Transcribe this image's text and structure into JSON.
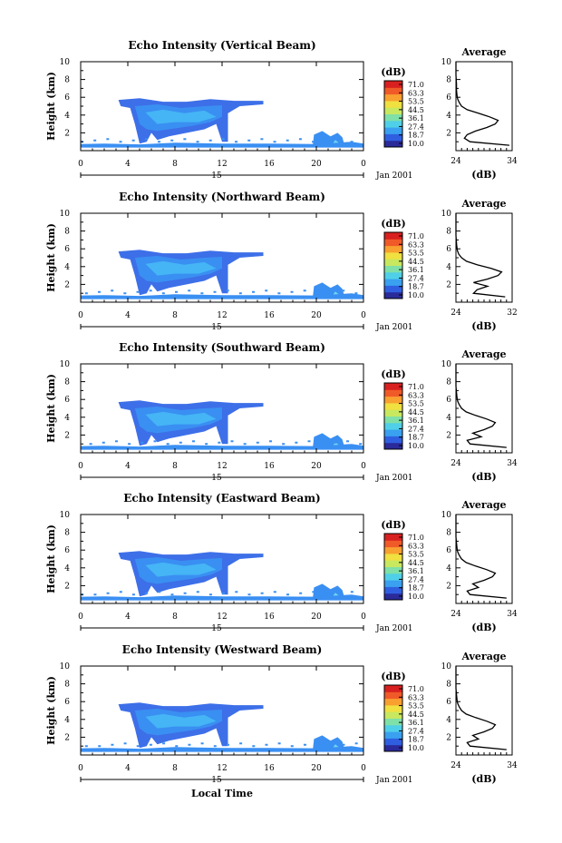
{
  "figure": {
    "xlabel": "Local Time",
    "date_label": "Jan 2001",
    "average_title": "Average",
    "avg_xlabel": "(dB)",
    "colorbar_unit": "(dB)",
    "colorbar_ticks": [
      "71.0",
      "63.3",
      "53.5",
      "44.5",
      "36.1",
      "27.4",
      "18.7",
      "10.0"
    ],
    "colorbar_colors": [
      "#2a2a9a",
      "#2f5fe0",
      "#3aa0f0",
      "#4fd0e8",
      "#7fe0a8",
      "#c8e860",
      "#f0e040",
      "#f8a030",
      "#f05a28",
      "#d82020"
    ],
    "echo_colors": [
      "#3d6fe8",
      "#3a8ff2",
      "#45b5f5",
      "#6fd6f0",
      "#a8ee9a"
    ]
  },
  "chart_data": [
    {
      "type": "heatmap",
      "title": "Echo Intensity (Vertical Beam)",
      "ylabel": "Height (km)",
      "xlim": [
        0,
        24
      ],
      "ylim": [
        0,
        10
      ],
      "x_ticks": [
        "0",
        "4",
        "8",
        "12",
        "16",
        "20",
        "0"
      ],
      "y_ticks": [
        "2",
        "4",
        "6",
        "8",
        "10"
      ],
      "day_marker": "15",
      "colorbar_range": [
        10.0,
        71.0
      ],
      "average_profile": {
        "xlim": [
          24,
          34
        ],
        "x_ticks": [
          "24",
          "34"
        ],
        "ylim": [
          0,
          10
        ],
        "y_ticks": [
          "2",
          "4",
          "6",
          "8",
          "10"
        ],
        "db": [
          33.5,
          26.5,
          25.5,
          26.0,
          27.5,
          29.5,
          31.0,
          31.5,
          30.0,
          28.0,
          26.0,
          25.0,
          24.6,
          24.3,
          24.2,
          24.1,
          24.1,
          24.0,
          24.0,
          24.0
        ],
        "height_km": [
          0.6,
          1.0,
          1.4,
          1.8,
          2.2,
          2.6,
          3.0,
          3.4,
          3.8,
          4.2,
          4.6,
          5.0,
          5.4,
          5.8,
          6.2,
          6.8,
          7.5,
          8.5,
          9.2,
          10.0
        ]
      }
    },
    {
      "type": "heatmap",
      "title": "Echo Intensity (Northward Beam)",
      "ylabel": "Height (km)",
      "xlim": [
        0,
        24
      ],
      "ylim": [
        0,
        10
      ],
      "x_ticks": [
        "0",
        "4",
        "8",
        "12",
        "16",
        "20",
        "0"
      ],
      "y_ticks": [
        "2",
        "4",
        "6",
        "8",
        "10"
      ],
      "day_marker": "15",
      "colorbar_range": [
        10.0,
        71.0
      ],
      "average_profile": {
        "xlim": [
          24,
          32
        ],
        "x_ticks": [
          "24",
          "32"
        ],
        "ylim": [
          0,
          10
        ],
        "y_ticks": [
          "2",
          "4",
          "6",
          "8",
          "10"
        ],
        "db": [
          31.0,
          26.5,
          27.0,
          28.5,
          26.5,
          28.5,
          30.0,
          30.5,
          29.0,
          27.0,
          25.5,
          24.8,
          24.4,
          24.2,
          24.1,
          24.0,
          24.0,
          24.0
        ],
        "height_km": [
          0.6,
          1.0,
          1.4,
          1.8,
          2.2,
          2.6,
          3.0,
          3.4,
          3.8,
          4.2,
          4.6,
          5.0,
          5.4,
          5.8,
          6.4,
          7.5,
          8.5,
          10.0
        ]
      }
    },
    {
      "type": "heatmap",
      "title": "Echo Intensity (Southward Beam)",
      "ylabel": "Height (km)",
      "xlim": [
        0,
        24
      ],
      "ylim": [
        0,
        10
      ],
      "x_ticks": [
        "0",
        "4",
        "8",
        "12",
        "16",
        "20",
        "0"
      ],
      "y_ticks": [
        "2",
        "4",
        "6",
        "8",
        "10"
      ],
      "day_marker": "15",
      "colorbar_range": [
        10.0,
        71.0
      ],
      "average_profile": {
        "xlim": [
          24,
          34
        ],
        "x_ticks": [
          "24",
          "34"
        ],
        "ylim": [
          0,
          10
        ],
        "y_ticks": [
          "2",
          "4",
          "6",
          "8",
          "10"
        ],
        "db": [
          33.0,
          26.5,
          26.0,
          28.5,
          27.0,
          29.0,
          30.5,
          31.0,
          29.5,
          27.5,
          25.8,
          25.0,
          24.6,
          24.3,
          24.2,
          24.1,
          24.0,
          24.0,
          24.0
        ],
        "height_km": [
          0.6,
          1.0,
          1.4,
          1.8,
          2.2,
          2.6,
          3.0,
          3.4,
          3.8,
          4.2,
          4.6,
          5.0,
          5.4,
          5.8,
          6.2,
          6.8,
          7.5,
          8.5,
          10.0
        ]
      }
    },
    {
      "type": "heatmap",
      "title": "Echo Intensity (Eastward Beam)",
      "ylabel": "Height (km)",
      "xlim": [
        0,
        24
      ],
      "ylim": [
        0,
        10
      ],
      "x_ticks": [
        "0",
        "4",
        "8",
        "12",
        "16",
        "20",
        "0"
      ],
      "y_ticks": [
        "2",
        "4",
        "6",
        "8",
        "10"
      ],
      "day_marker": "15",
      "colorbar_range": [
        10.0,
        71.0
      ],
      "average_profile": {
        "xlim": [
          24,
          34
        ],
        "x_ticks": [
          "24",
          "34"
        ],
        "ylim": [
          0,
          10
        ],
        "y_ticks": [
          "2",
          "4",
          "6",
          "8",
          "10"
        ],
        "db": [
          33.0,
          26.5,
          26.0,
          28.0,
          27.0,
          29.0,
          30.5,
          31.0,
          29.5,
          27.5,
          25.8,
          25.0,
          24.6,
          24.3,
          24.2,
          24.1,
          24.0,
          24.0,
          24.0
        ],
        "height_km": [
          0.6,
          1.0,
          1.4,
          1.8,
          2.2,
          2.6,
          3.0,
          3.4,
          3.8,
          4.2,
          4.6,
          5.0,
          5.4,
          5.8,
          6.2,
          6.8,
          7.5,
          8.5,
          10.0
        ]
      }
    },
    {
      "type": "heatmap",
      "title": "Echo Intensity (Westward Beam)",
      "ylabel": "Height (km)",
      "xlim": [
        0,
        24
      ],
      "ylim": [
        0,
        10
      ],
      "x_ticks": [
        "0",
        "4",
        "8",
        "12",
        "16",
        "20",
        "0"
      ],
      "y_ticks": [
        "2",
        "4",
        "6",
        "8",
        "10"
      ],
      "day_marker": "15",
      "colorbar_range": [
        10.0,
        71.0
      ],
      "average_profile": {
        "xlim": [
          24,
          34
        ],
        "x_ticks": [
          "24",
          "34"
        ],
        "ylim": [
          0,
          10
        ],
        "y_ticks": [
          "2",
          "4",
          "6",
          "8",
          "10"
        ],
        "db": [
          33.0,
          26.5,
          26.0,
          28.0,
          27.0,
          29.0,
          30.5,
          31.0,
          29.5,
          27.5,
          25.8,
          25.0,
          24.6,
          24.3,
          24.2,
          24.1,
          24.0,
          24.0,
          24.0
        ],
        "height_km": [
          0.6,
          1.0,
          1.4,
          1.8,
          2.2,
          2.6,
          3.0,
          3.4,
          3.8,
          4.2,
          4.6,
          5.0,
          5.4,
          5.8,
          6.2,
          6.8,
          7.5,
          8.5,
          10.0
        ]
      }
    }
  ]
}
